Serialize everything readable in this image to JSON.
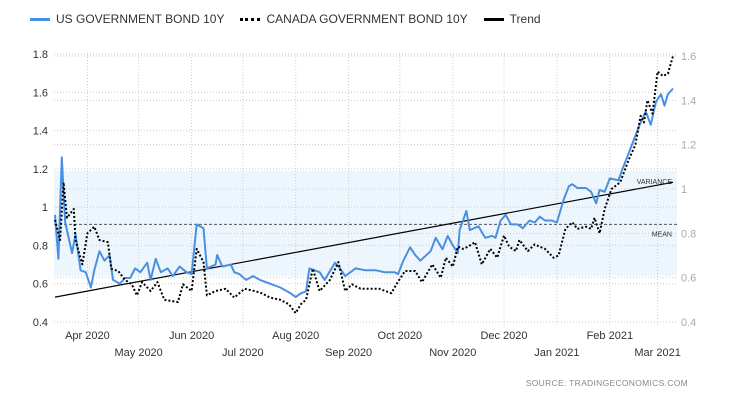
{
  "chart_data": {
    "type": "line",
    "x_unit": "days since 2020-03-13",
    "legend": [
      {
        "name": "US GOVERNMENT BOND 10Y",
        "color": "#4a90e2",
        "style": "solid",
        "axis": "left"
      },
      {
        "name": "CANADA GOVERNMENT BOND 10Y",
        "color": "#000000",
        "style": "dotted",
        "axis": "right"
      },
      {
        "name": "Trend",
        "color": "#000000",
        "style": "solid",
        "axis": "left"
      }
    ],
    "legend_position": "top-left",
    "x_ticks": [
      {
        "label": "Apr 2020",
        "day": 19,
        "row": 1
      },
      {
        "label": "May 2020",
        "day": 49,
        "row": 2
      },
      {
        "label": "Jun 2020",
        "day": 80,
        "row": 1
      },
      {
        "label": "Jul 2020",
        "day": 110,
        "row": 2
      },
      {
        "label": "Aug 2020",
        "day": 141,
        "row": 1
      },
      {
        "label": "Sep 2020",
        "day": 172,
        "row": 2
      },
      {
        "label": "Oct 2020",
        "day": 202,
        "row": 1
      },
      {
        "label": "Nov 2020",
        "day": 233,
        "row": 2
      },
      {
        "label": "Dec 2020",
        "day": 263,
        "row": 1
      },
      {
        "label": "Jan 2021",
        "day": 294,
        "row": 2
      },
      {
        "label": "Feb 2021",
        "day": 325,
        "row": 1
      },
      {
        "label": "Mar 2021",
        "day": 353,
        "row": 2
      }
    ],
    "xlim": [
      0,
      362
    ],
    "y_left": {
      "ylim": [
        0.4,
        1.8
      ],
      "ticks": [
        "0.4",
        "0.6",
        "0.8",
        "1",
        "1.2",
        "1.4",
        "1.6",
        "1.8"
      ]
    },
    "y_right": {
      "ylim": [
        0.4,
        1.6
      ],
      "ticks": [
        "0.4",
        "0.6",
        "0.8",
        "1",
        "1.2",
        "1.4",
        "1.6"
      ]
    },
    "grid": true,
    "series": [
      {
        "name": "US GOVERNMENT BOND 10Y",
        "axis": "left",
        "x": [
          0,
          2,
          4,
          6,
          10,
          12,
          15,
          18,
          21,
          23,
          26,
          29,
          32,
          34,
          38,
          41,
          44,
          47,
          50,
          54,
          56,
          59,
          62,
          66,
          69,
          73,
          77,
          80,
          83,
          87,
          89,
          94,
          95,
          98,
          103,
          105,
          108,
          112,
          116,
          120,
          126,
          132,
          138,
          141,
          144,
          147,
          149,
          155,
          158,
          164,
          167,
          170,
          176,
          182,
          188,
          193,
          199,
          201,
          204,
          208,
          211,
          214,
          220,
          223,
          227,
          230,
          233,
          236,
          237,
          241,
          243,
          248,
          252,
          256,
          258,
          261,
          264,
          267,
          271,
          274,
          278,
          281,
          284,
          287,
          291,
          294,
          298,
          301,
          303,
          306,
          311,
          314,
          317,
          319,
          322,
          325,
          330,
          332,
          336,
          339,
          342,
          346,
          349,
          352,
          355,
          357,
          359,
          362
        ],
        "y": [
          0.96,
          0.73,
          1.26,
          0.92,
          0.76,
          0.86,
          0.67,
          0.66,
          0.58,
          0.67,
          0.77,
          0.72,
          0.75,
          0.62,
          0.6,
          0.63,
          0.63,
          0.68,
          0.66,
          0.71,
          0.62,
          0.73,
          0.66,
          0.68,
          0.64,
          0.69,
          0.66,
          0.65,
          0.91,
          0.89,
          0.68,
          0.7,
          0.75,
          0.69,
          0.7,
          0.66,
          0.65,
          0.62,
          0.64,
          0.62,
          0.6,
          0.58,
          0.55,
          0.53,
          0.55,
          0.56,
          0.68,
          0.66,
          0.62,
          0.71,
          0.68,
          0.64,
          0.68,
          0.67,
          0.67,
          0.66,
          0.66,
          0.65,
          0.72,
          0.79,
          0.75,
          0.72,
          0.77,
          0.84,
          0.78,
          0.85,
          0.8,
          0.76,
          0.88,
          0.98,
          0.88,
          0.9,
          0.84,
          0.85,
          0.84,
          0.93,
          0.96,
          0.91,
          0.91,
          0.89,
          0.93,
          0.92,
          0.95,
          0.93,
          0.93,
          0.92,
          1.04,
          1.11,
          1.12,
          1.1,
          1.1,
          1.08,
          1.02,
          1.09,
          1.08,
          1.15,
          1.14,
          1.19,
          1.28,
          1.35,
          1.42,
          1.5,
          1.43,
          1.55,
          1.59,
          1.53,
          1.59,
          1.62
        ]
      },
      {
        "name": "CANADA GOVERNMENT BOND 10Y",
        "axis": "right",
        "x": [
          0,
          3,
          5,
          7,
          11,
          12,
          16,
          19,
          23,
          26,
          31,
          33,
          37,
          41,
          45,
          48,
          51,
          56,
          60,
          64,
          72,
          75,
          80,
          83,
          87,
          89,
          94,
          100,
          105,
          111,
          117,
          121,
          126,
          132,
          137,
          141,
          144,
          147,
          151,
          155,
          161,
          166,
          170,
          174,
          179,
          185,
          190,
          197,
          200,
          205,
          211,
          215,
          221,
          226,
          229,
          233,
          236,
          239,
          242,
          246,
          250,
          255,
          259,
          263,
          266,
          270,
          272,
          277,
          281,
          287,
          292,
          295,
          299,
          303,
          306,
          311,
          314,
          316,
          319,
          322,
          326,
          331,
          336,
          340,
          343,
          345,
          347,
          350,
          353,
          356,
          359,
          362
        ],
        "y": [
          0.86,
          0.77,
          1.03,
          0.87,
          0.91,
          0.77,
          0.66,
          0.8,
          0.83,
          0.77,
          0.76,
          0.64,
          0.63,
          0.59,
          0.57,
          0.52,
          0.58,
          0.54,
          0.58,
          0.5,
          0.49,
          0.57,
          0.54,
          0.73,
          0.67,
          0.52,
          0.54,
          0.55,
          0.51,
          0.55,
          0.54,
          0.53,
          0.51,
          0.5,
          0.48,
          0.44,
          0.48,
          0.5,
          0.64,
          0.54,
          0.59,
          0.67,
          0.54,
          0.57,
          0.55,
          0.55,
          0.55,
          0.53,
          0.57,
          0.63,
          0.63,
          0.58,
          0.66,
          0.6,
          0.69,
          0.65,
          0.74,
          0.73,
          0.74,
          0.76,
          0.66,
          0.73,
          0.69,
          0.79,
          0.74,
          0.72,
          0.77,
          0.72,
          0.75,
          0.73,
          0.69,
          0.7,
          0.82,
          0.85,
          0.82,
          0.83,
          0.82,
          0.87,
          0.8,
          0.91,
          1.0,
          1.03,
          1.13,
          1.2,
          1.33,
          1.3,
          1.4,
          1.34,
          1.53,
          1.51,
          1.52,
          1.6
        ]
      }
    ],
    "trend": {
      "name": "Trend",
      "axis": "left",
      "x": [
        0,
        362
      ],
      "y": [
        0.53,
        1.13
      ]
    },
    "mean": {
      "label": "MEAN",
      "value": 0.91
    },
    "variance_band": {
      "label": "VARIANCE",
      "low": 0.64,
      "high": 1.19
    },
    "colors": {
      "us": "#4a90e2",
      "canada": "#000000",
      "band": "#eef6fd",
      "grid": "#cccccc"
    }
  },
  "source": "SOURCE:  TRADINGECONOMICS.COM"
}
